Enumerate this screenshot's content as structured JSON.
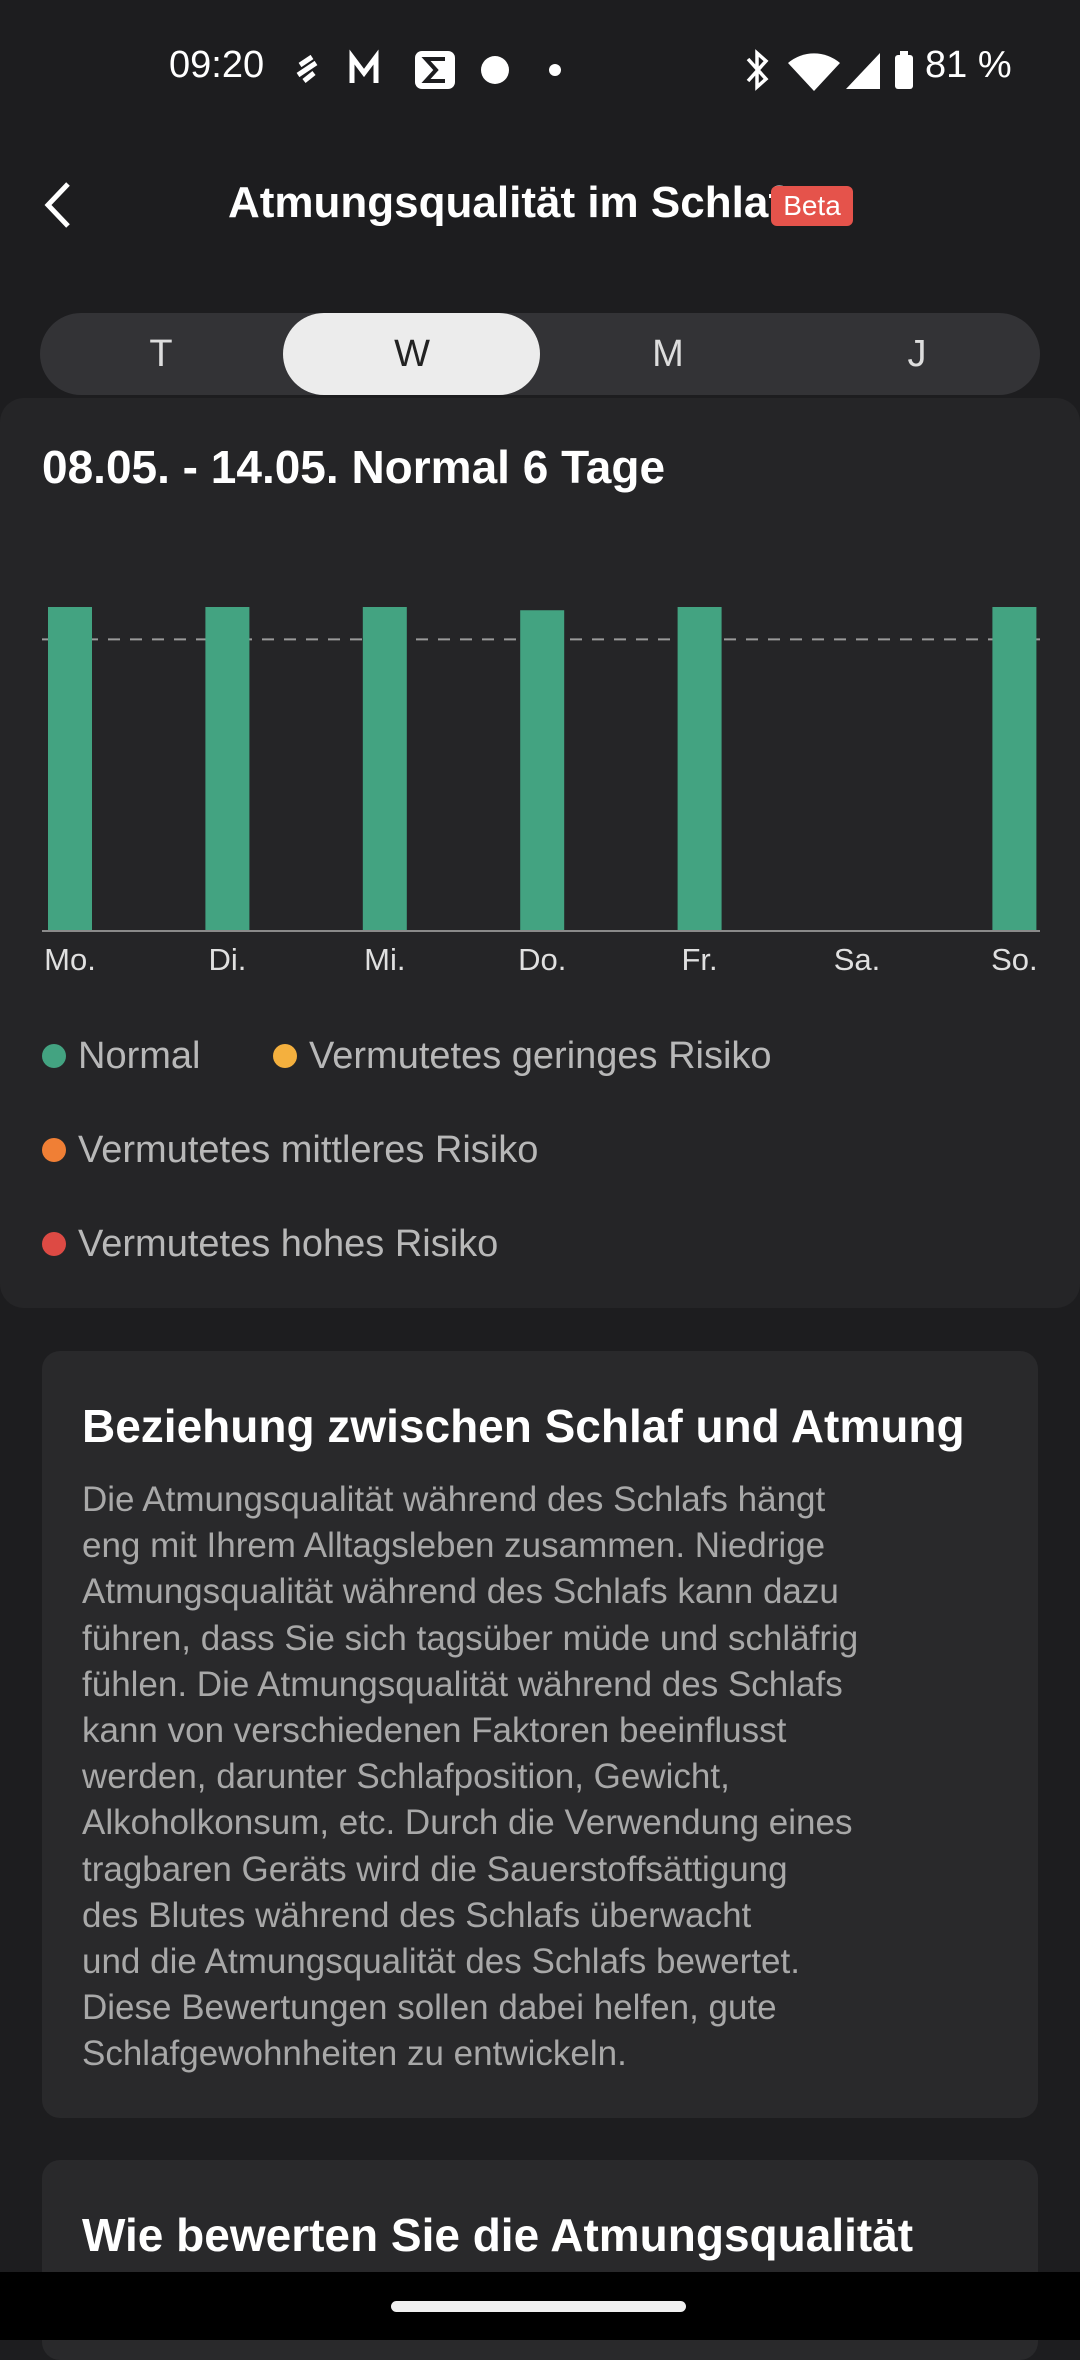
{
  "status_bar": {
    "time": "09:20",
    "battery": "81 %"
  },
  "header": {
    "title": "Atmungsqualität im Schlaf",
    "badge": "Beta"
  },
  "tabs": [
    "T",
    "W",
    "M",
    "J"
  ],
  "selected_tab": 1,
  "chart_data": {
    "type": "bar",
    "title": "08.05. - 14.05. Normal 6 Tage",
    "categories": [
      "Mo.",
      "Di.",
      "Mi.",
      "Do.",
      "Fr.",
      "Sa.",
      "So."
    ],
    "series": [
      {
        "name": "Normal",
        "color": "#43a381",
        "values": [
          100,
          100,
          100,
          99,
          100,
          null,
          100
        ]
      },
      {
        "name": "Vermutetes geringes Risiko",
        "color": "#f4b03e",
        "values": [
          null,
          null,
          null,
          null,
          null,
          null,
          null
        ]
      },
      {
        "name": "Vermutetes mittleres Risiko",
        "color": "#f07f35",
        "values": [
          null,
          null,
          null,
          null,
          null,
          null,
          null
        ]
      },
      {
        "name": "Vermutetes hohes Risiko",
        "color": "#dd4a44",
        "values": [
          null,
          null,
          null,
          null,
          null,
          null,
          null
        ]
      }
    ],
    "ylim": [
      0,
      100
    ],
    "reference_line": 90,
    "grid": false,
    "legend": "bottom"
  },
  "cards": [
    {
      "title": "Beziehung zwischen Schlaf und Atmung",
      "lines": [
        "Die Atmungsqualität während des Schlafs hängt",
        "eng mit Ihrem Alltagsleben zusammen. Niedrige",
        "Atmungsqualität während des Schlafs kann dazu",
        "führen, dass Sie sich tagsüber müde und schläfrig",
        "fühlen. Die Atmungsqualität während des Schlafs",
        "kann von verschiedenen Faktoren beeinflusst",
        "werden, darunter Schlafposition, Gewicht,",
        "Alkoholkonsum, etc. Durch die Verwendung eines",
        "tragbaren Geräts wird die Sauerstoffsättigung",
        "des Blutes während des Schlafs überwacht",
        "und die Atmungsqualität des Schlafs bewertet.",
        "Diese Bewertungen sollen dabei helfen, gute",
        "Schlafgewohnheiten zu entwickeln."
      ]
    },
    {
      "title": "Wie bewerten Sie die Atmungsqualität",
      "lines": []
    }
  ]
}
